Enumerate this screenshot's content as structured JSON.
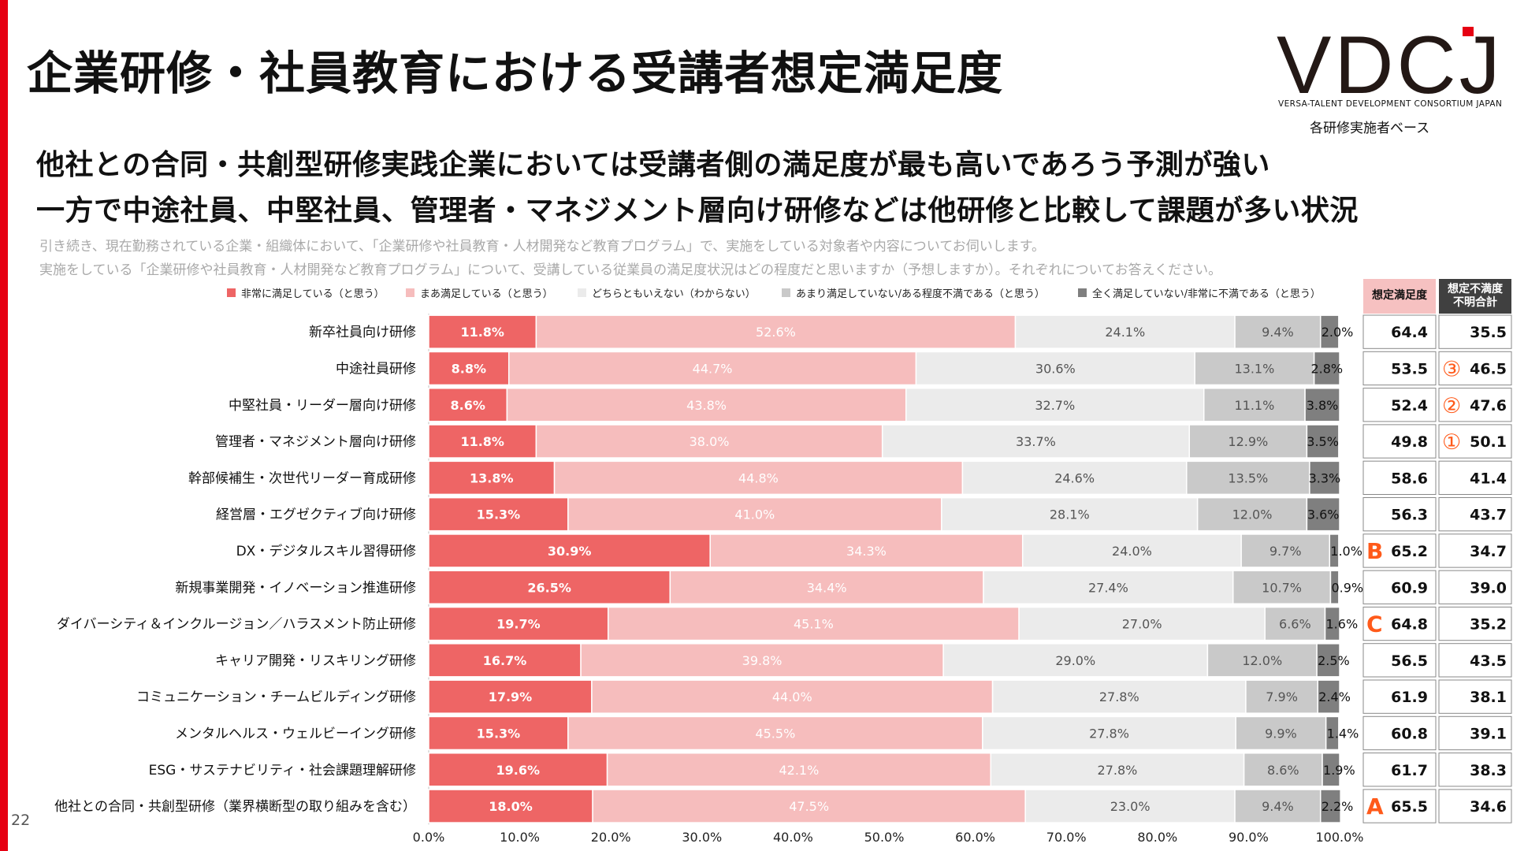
{
  "page": {
    "title": "企業研修・社員教育における受講者想定満足度",
    "headline_1": "他社との合同・共創型研修実践企業においては受講者側の満足度が最も高いであろう予測が強い",
    "headline_2": "一方で中途社員、中堅社員、管理者・マネジメント層向け研修などは他研修と比較して課題が多い状況",
    "note_1": "引き続き、現在勤務されている企業・組織体において、「企業研修や社員教育・人材開発など教育プログラム」で、実施をしている対象者や内容についてお伺いします。",
    "note_2": "実施をしている「企業研修や社員教育・人材開発など教育プログラム」について、受講している従業員の満足度状況はどの程度だと思いますか（予想しますか）。それぞれについてお答えください。",
    "page_number": "22",
    "basis": "各研修実施者ベース"
  },
  "logo": {
    "text": "VDCJ",
    "subtitle": "VERSA-TALENT DEVELOPMENT CONSORTIUM JAPAN"
  },
  "table": {
    "col1_header": "想定満足度",
    "col2_header": "想定不満度\n不明合計"
  },
  "colors": {
    "brand_red": "#e60012",
    "very_satisfied": "#ee6565",
    "somewhat_satisfied": "#f6bdbd",
    "neutral": "#ebebeb",
    "somewhat_dissatisfied": "#c9c9c9",
    "very_dissatisfied": "#7f7f7f",
    "marker": "#ff5a1a"
  },
  "chart_data": {
    "type": "bar",
    "orientation": "horizontal-stacked-100",
    "xlim": [
      0,
      100
    ],
    "x_ticks": [
      "0.0%",
      "10.0%",
      "20.0%",
      "30.0%",
      "40.0%",
      "50.0%",
      "60.0%",
      "70.0%",
      "80.0%",
      "90.0%",
      "100.0%"
    ],
    "legend_position": "top",
    "categories": [
      "新卒社員向け研修",
      "中途社員研修",
      "中堅社員・リーダー層向け研修",
      "管理者・マネジメント層向け研修",
      "幹部候補生・次世代リーダー育成研修",
      "経営層・エグゼクティブ向け研修",
      "DX・デジタルスキル習得研修",
      "新規事業開発・イノベーション推進研修",
      "ダイバーシティ＆インクルージョン／ハラスメント防止研修",
      "キャリア開発・リスキリング研修",
      "コミュニケーション・チームビルディング研修",
      "メンタルヘルス・ウェルビーイング研修",
      "ESG・サステナビリティ・社会課題理解研修",
      "他社との合同・共創型研修（業界横断型の取り組みを含む）"
    ],
    "series": [
      {
        "name": "非常に満足している（と思う）",
        "values": [
          11.8,
          8.8,
          8.6,
          11.8,
          13.8,
          15.3,
          30.9,
          26.5,
          19.7,
          16.7,
          17.9,
          15.3,
          19.6,
          18.0
        ]
      },
      {
        "name": "まあ満足している（と思う）",
        "values": [
          52.6,
          44.7,
          43.8,
          38.0,
          44.8,
          41.0,
          34.3,
          34.4,
          45.1,
          39.8,
          44.0,
          45.5,
          42.1,
          47.5
        ]
      },
      {
        "name": "どちらともいえない（わからない）",
        "values": [
          24.1,
          30.6,
          32.7,
          33.7,
          24.6,
          28.1,
          24.0,
          27.4,
          27.0,
          29.0,
          27.8,
          27.8,
          27.8,
          23.0
        ]
      },
      {
        "name": "あまり満足していない/ある程度不満である（と思う）",
        "values": [
          9.4,
          13.1,
          11.1,
          12.9,
          13.5,
          12.0,
          9.7,
          10.7,
          6.6,
          12.0,
          7.9,
          9.9,
          8.6,
          9.4
        ]
      },
      {
        "name": "全く満足していない/非常に不満である（と思う）",
        "values": [
          2.0,
          2.8,
          3.8,
          3.5,
          3.3,
          3.6,
          1.0,
          0.9,
          1.6,
          2.5,
          2.4,
          1.4,
          1.9,
          2.2
        ]
      }
    ],
    "satisfaction": [
      "64.4",
      "53.5",
      "52.4",
      "49.8",
      "58.6",
      "56.3",
      "65.2",
      "60.9",
      "64.8",
      "56.5",
      "61.9",
      "60.8",
      "61.7",
      "65.5"
    ],
    "dissatisfaction": [
      "35.5",
      "46.5",
      "47.6",
      "50.1",
      "41.4",
      "43.7",
      "34.7",
      "39.0",
      "35.2",
      "43.5",
      "38.1",
      "39.1",
      "38.3",
      "34.6"
    ],
    "satisfaction_markers": [
      "",
      "",
      "",
      "",
      "",
      "",
      "B",
      "",
      "C",
      "",
      "",
      "",
      "",
      "A"
    ],
    "dissatisfaction_markers": [
      "",
      "③",
      "②",
      "①",
      "",
      "",
      "",
      "",
      "",
      "",
      "",
      "",
      "",
      ""
    ]
  }
}
